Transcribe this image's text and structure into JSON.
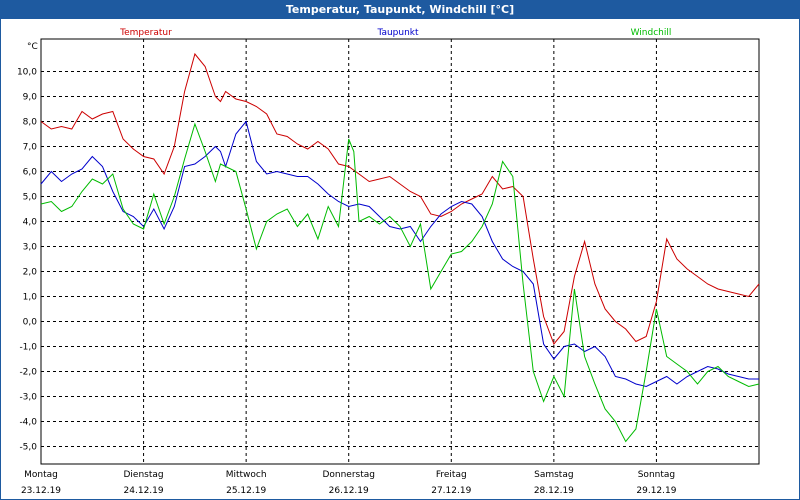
{
  "window": {
    "title": "Temperatur, Taupunkt, Windchill [°C]"
  },
  "colors": {
    "temperatur": "#cc0000",
    "taupunkt": "#0000cc",
    "windchill": "#00bb00",
    "title_bar": "#1e5aa0"
  },
  "chart_data": {
    "type": "line",
    "title": "Temperatur, Taupunkt, Windchill [°C]",
    "ylabel": "°C",
    "ylim": [
      -5.7,
      11.3
    ],
    "yticks": [
      -5,
      -4,
      -3,
      -2,
      -1,
      0,
      1,
      2,
      3,
      4,
      5,
      6,
      7,
      8,
      9,
      10
    ],
    "ytick_labels": [
      "-5,0",
      "-4,0",
      "-3,0",
      "-2,0",
      "-1,0",
      "0,0",
      "1,0",
      "2,0",
      "3,0",
      "4,0",
      "5,0",
      "6,0",
      "7,0",
      "8,0",
      "9,0",
      "10,0"
    ],
    "xlim": [
      0,
      7
    ],
    "x_categories": [
      {
        "day": "Montag",
        "date": "23.12.19"
      },
      {
        "day": "Dienstag",
        "date": "24.12.19"
      },
      {
        "day": "Mittwoch",
        "date": "25.12.19"
      },
      {
        "day": "Donnerstag",
        "date": "26.12.19"
      },
      {
        "day": "Freitag",
        "date": "27.12.19"
      },
      {
        "day": "Samstag",
        "date": "28.12.19"
      },
      {
        "day": "Sonntag",
        "date": "29.12.19"
      }
    ],
    "grid": true,
    "legend_position": "top",
    "series": [
      {
        "name": "Temperatur",
        "color": "#cc0000",
        "x": [
          0,
          0.1,
          0.2,
          0.3,
          0.4,
          0.5,
          0.6,
          0.7,
          0.8,
          0.9,
          1.0,
          1.1,
          1.2,
          1.3,
          1.4,
          1.5,
          1.6,
          1.7,
          1.75,
          1.8,
          1.9,
          2.0,
          2.1,
          2.2,
          2.3,
          2.4,
          2.5,
          2.6,
          2.7,
          2.8,
          2.9,
          3.0,
          3.1,
          3.2,
          3.3,
          3.4,
          3.5,
          3.6,
          3.7,
          3.8,
          3.9,
          4.0,
          4.1,
          4.2,
          4.3,
          4.4,
          4.5,
          4.6,
          4.7,
          4.8,
          4.9,
          5.0,
          5.1,
          5.2,
          5.3,
          5.4,
          5.5,
          5.6,
          5.7,
          5.8,
          5.9,
          6.0,
          6.1,
          6.2,
          6.3,
          6.4,
          6.5,
          6.6,
          6.7,
          6.8,
          6.9,
          7.0
        ],
        "y": [
          8.0,
          7.7,
          7.8,
          7.7,
          8.4,
          8.1,
          8.3,
          8.4,
          7.3,
          6.9,
          6.6,
          6.5,
          5.9,
          7.0,
          9.2,
          10.7,
          10.2,
          9.0,
          8.8,
          9.2,
          8.9,
          8.8,
          8.6,
          8.3,
          7.5,
          7.4,
          7.1,
          6.9,
          7.2,
          6.9,
          6.3,
          6.2,
          5.9,
          5.6,
          5.7,
          5.8,
          5.5,
          5.2,
          5.0,
          4.3,
          4.2,
          4.4,
          4.7,
          4.9,
          5.1,
          5.8,
          5.3,
          5.4,
          5.0,
          2.5,
          0.2,
          -0.9,
          -0.4,
          1.8,
          3.2,
          1.5,
          0.5,
          0.0,
          -0.3,
          -0.8,
          -0.6,
          0.8,
          3.3,
          2.5,
          2.1,
          1.8,
          1.5,
          1.3,
          1.2,
          1.1,
          1.0,
          1.5
        ]
      },
      {
        "name": "Taupunkt",
        "color": "#0000cc",
        "x": [
          0,
          0.1,
          0.2,
          0.3,
          0.4,
          0.5,
          0.6,
          0.7,
          0.8,
          0.9,
          1.0,
          1.1,
          1.2,
          1.3,
          1.4,
          1.5,
          1.6,
          1.7,
          1.75,
          1.8,
          1.9,
          2.0,
          2.1,
          2.2,
          2.3,
          2.4,
          2.5,
          2.6,
          2.7,
          2.8,
          2.9,
          3.0,
          3.1,
          3.2,
          3.3,
          3.4,
          3.5,
          3.6,
          3.7,
          3.8,
          3.9,
          4.0,
          4.1,
          4.2,
          4.3,
          4.4,
          4.5,
          4.6,
          4.7,
          4.8,
          4.9,
          5.0,
          5.1,
          5.2,
          5.3,
          5.4,
          5.5,
          5.6,
          5.7,
          5.8,
          5.9,
          6.0,
          6.1,
          6.2,
          6.3,
          6.4,
          6.5,
          6.6,
          6.7,
          6.8,
          6.9,
          7.0
        ],
        "y": [
          5.5,
          6.0,
          5.6,
          5.9,
          6.1,
          6.6,
          6.2,
          5.2,
          4.4,
          4.2,
          3.8,
          4.5,
          3.7,
          4.6,
          6.2,
          6.3,
          6.6,
          7.0,
          6.8,
          6.2,
          7.5,
          8.0,
          6.4,
          5.9,
          6.0,
          5.9,
          5.8,
          5.8,
          5.5,
          5.1,
          4.8,
          4.6,
          4.7,
          4.6,
          4.2,
          3.8,
          3.7,
          3.8,
          3.2,
          3.8,
          4.3,
          4.6,
          4.8,
          4.7,
          4.2,
          3.2,
          2.5,
          2.2,
          2.0,
          1.5,
          -0.9,
          -1.5,
          -1.0,
          -0.9,
          -1.2,
          -1.0,
          -1.4,
          -2.2,
          -2.3,
          -2.5,
          -2.6,
          -2.4,
          -2.2,
          -2.5,
          -2.2,
          -2.0,
          -1.8,
          -1.9,
          -2.1,
          -2.2,
          -2.3,
          -2.3
        ]
      },
      {
        "name": "Windchill",
        "color": "#00bb00",
        "x": [
          0,
          0.1,
          0.2,
          0.3,
          0.4,
          0.5,
          0.6,
          0.7,
          0.8,
          0.9,
          1.0,
          1.1,
          1.2,
          1.3,
          1.4,
          1.5,
          1.6,
          1.7,
          1.75,
          1.8,
          1.9,
          2.0,
          2.1,
          2.2,
          2.3,
          2.4,
          2.5,
          2.6,
          2.7,
          2.8,
          2.9,
          3.0,
          3.05,
          3.1,
          3.2,
          3.3,
          3.4,
          3.5,
          3.6,
          3.7,
          3.8,
          3.9,
          4.0,
          4.1,
          4.2,
          4.3,
          4.4,
          4.5,
          4.6,
          4.7,
          4.8,
          4.9,
          5.0,
          5.1,
          5.2,
          5.3,
          5.4,
          5.5,
          5.6,
          5.7,
          5.8,
          5.9,
          6.0,
          6.1,
          6.2,
          6.3,
          6.4,
          6.5,
          6.6,
          6.7,
          6.8,
          6.9,
          7.0
        ],
        "y": [
          4.7,
          4.8,
          4.4,
          4.6,
          5.2,
          5.7,
          5.5,
          5.9,
          4.5,
          3.9,
          3.7,
          5.1,
          3.9,
          5.0,
          6.5,
          7.9,
          6.8,
          5.6,
          6.3,
          6.2,
          6.0,
          4.5,
          2.9,
          4.0,
          4.3,
          4.5,
          3.8,
          4.3,
          3.3,
          4.6,
          3.8,
          7.3,
          6.8,
          4.0,
          4.2,
          3.9,
          4.2,
          3.8,
          3.0,
          3.9,
          1.3,
          2.0,
          2.7,
          2.8,
          3.2,
          3.8,
          4.7,
          6.4,
          5.8,
          1.5,
          -2.0,
          -3.2,
          -2.2,
          -3.0,
          1.3,
          -1.4,
          -2.5,
          -3.5,
          -4.0,
          -4.8,
          -4.3,
          -2.0,
          0.5,
          -1.4,
          -1.7,
          -2.0,
          -2.5,
          -2.0,
          -1.8,
          -2.2,
          -2.4,
          -2.6,
          -2.5
        ]
      }
    ]
  }
}
